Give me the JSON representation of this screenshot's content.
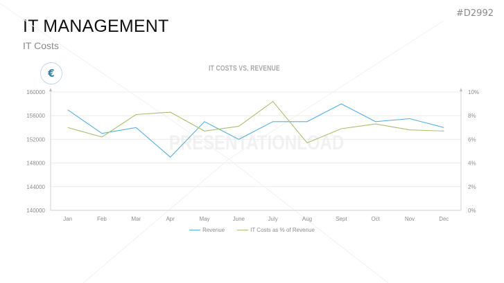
{
  "header": {
    "title": "IT MANAGEMENT",
    "subtitle": "IT Costs",
    "doc_id": "#D2992"
  },
  "badge": {
    "icon": "euro-icon",
    "glyph": "€"
  },
  "watermark": "PRESENTATIONLOAD",
  "colors": {
    "revenue": "#5aaee0",
    "it_costs": "#a7c170",
    "grid": "#ececec",
    "axis": "#d0d0d0"
  },
  "chart_data": {
    "type": "line",
    "title": "IT COSTS VS. REVENUE",
    "categories": [
      "Jan",
      "Feb",
      "Mar",
      "Apr",
      "May",
      "June",
      "July",
      "Aug",
      "Sept",
      "Oct",
      "Nov",
      "Dec"
    ],
    "series": [
      {
        "name": "Revenue",
        "axis": "left",
        "color": "#5aaee0",
        "values": [
          157000,
          153000,
          154000,
          149000,
          155000,
          152000,
          155000,
          155000,
          158000,
          155000,
          155500,
          154000
        ]
      },
      {
        "name": "IT Costs as % of Revenue",
        "axis": "right",
        "color": "#a7c170",
        "values": [
          7.0,
          6.2,
          8.1,
          8.3,
          6.7,
          7.1,
          9.2,
          5.7,
          6.9,
          7.3,
          6.8,
          6.7
        ]
      }
    ],
    "y_left": {
      "ylim": [
        140000,
        160000
      ],
      "ticks": [
        "140000",
        "144000",
        "148000",
        "152000",
        "156000",
        "160000"
      ]
    },
    "y_right": {
      "ylim": [
        0,
        10
      ],
      "ticks": [
        "0%",
        "2%",
        "4%",
        "6%",
        "8%",
        "10%"
      ]
    },
    "xlabel": "",
    "ylabel": "",
    "grid": true,
    "legend_position": "bottom"
  }
}
